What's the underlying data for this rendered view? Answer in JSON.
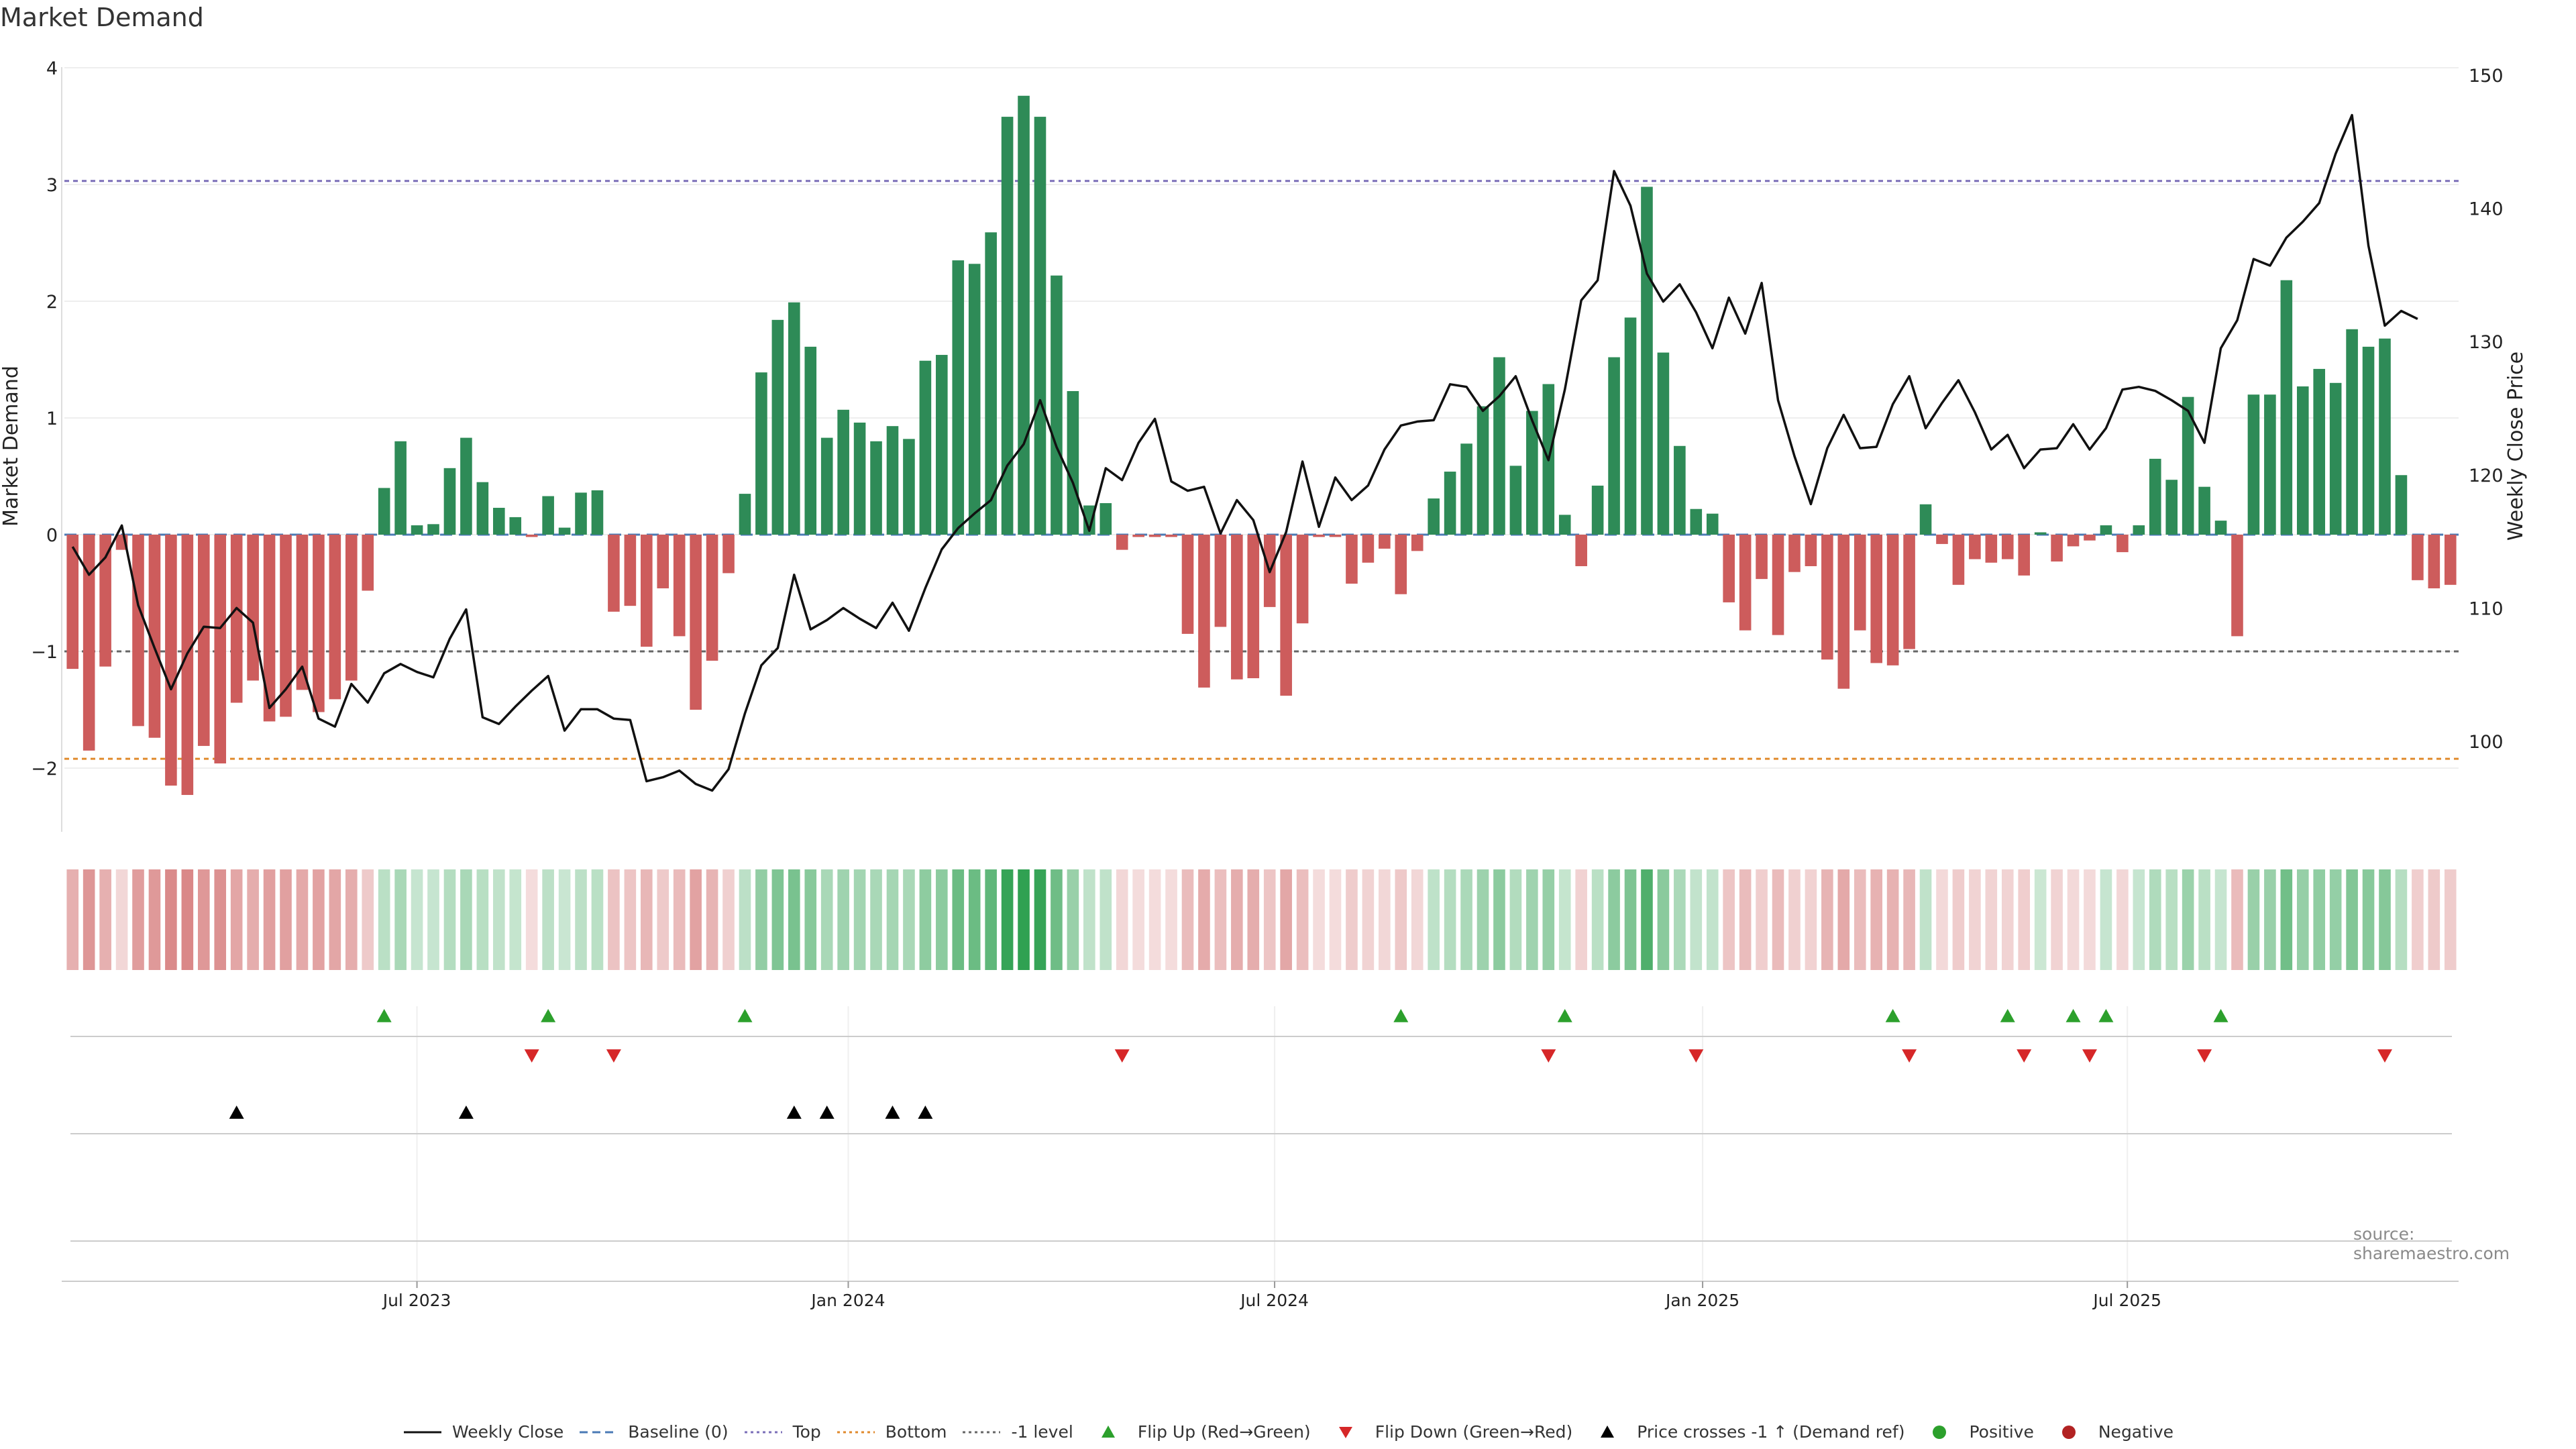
{
  "chart_data": {
    "type": "bar",
    "title": "Market Demand",
    "ylabel_left": "Market Demand",
    "ylabel_right": "Weekly Close Price",
    "source": "source: sharemaestro.com",
    "left_axis": {
      "ticks": [
        "4",
        "3",
        "2",
        "1",
        "0",
        "−1",
        "−2"
      ],
      "ylim": [
        -2.55,
        4.0
      ]
    },
    "right_axis": {
      "ticks": [
        "150",
        "140",
        "130",
        "120",
        "110",
        "100"
      ],
      "ylim": [
        94,
        151
      ]
    },
    "x_axis": {
      "labels": [
        "Jul 2023",
        "Jan 2024",
        "Jul 2024",
        "Jan 2025",
        "Jul 2025"
      ],
      "label_week_index": [
        21.5,
        47.8,
        73.8,
        99.9,
        125.8
      ]
    },
    "reference_lines": [
      {
        "name": "Top",
        "value": 3.03,
        "color": "#7b6fb8"
      },
      {
        "name": "-1 level",
        "value": -1.0,
        "color": "#666666"
      },
      {
        "name": "Bottom",
        "value": -1.92,
        "color": "#e08a2c"
      }
    ],
    "colors": {
      "positive": "#2e8b57",
      "negative": "#cd5c5c",
      "price": "#111111",
      "flip_up": "#2ca02c",
      "flip_down": "#d62728",
      "cross": "#000000"
    },
    "demand": [
      -1.15,
      -1.85,
      -1.13,
      -0.13,
      -1.64,
      -1.74,
      -2.15,
      -2.23,
      -1.81,
      -1.96,
      -1.44,
      -1.25,
      -1.6,
      -1.56,
      -1.33,
      -1.52,
      -1.41,
      -1.25,
      -0.48,
      0.4,
      0.8,
      0.08,
      0.09,
      0.57,
      0.83,
      0.45,
      0.23,
      0.15,
      -0.02,
      0.33,
      0.06,
      0.36,
      0.38,
      -0.66,
      -0.61,
      -0.96,
      -0.46,
      -0.87,
      -1.5,
      -1.08,
      -0.33,
      0.35,
      1.39,
      1.84,
      1.99,
      1.61,
      0.83,
      1.07,
      0.96,
      0.8,
      0.93,
      0.82,
      1.49,
      1.54,
      2.35,
      2.32,
      2.59,
      3.58,
      3.76,
      3.58,
      2.22,
      1.23,
      0.25,
      0.27,
      -0.13,
      -0.02,
      -0.02,
      -0.02,
      -0.85,
      -1.31,
      -0.79,
      -1.24,
      -1.23,
      -0.62,
      -1.38,
      -0.76,
      -0.02,
      -0.02,
      -0.42,
      -0.24,
      -0.12,
      -0.51,
      -0.14,
      0.31,
      0.54,
      0.78,
      1.1,
      1.52,
      0.59,
      1.06,
      1.29,
      0.17,
      -0.27,
      0.42,
      1.52,
      1.86,
      2.98,
      1.56,
      0.76,
      0.22,
      0.18,
      -0.58,
      -0.82,
      -0.38,
      -0.86,
      -0.32,
      -0.27,
      -1.07,
      -1.32,
      -0.82,
      -1.1,
      -1.12,
      -0.98,
      0.26,
      -0.08,
      -0.43,
      -0.21,
      -0.24,
      -0.21,
      -0.35,
      0.02,
      -0.23,
      -0.1,
      -0.05,
      0.08,
      -0.15,
      0.08,
      0.65,
      0.47,
      1.18,
      0.41,
      0.12,
      -0.87,
      1.2,
      1.2,
      2.18,
      1.27,
      1.42,
      1.3,
      1.76,
      1.61,
      1.68,
      0.51,
      -0.39,
      -0.46,
      -0.43
    ],
    "weekly_close": [
      114.6,
      112.5,
      113.8,
      116.2,
      110.2,
      107.0,
      103.9,
      106.6,
      108.6,
      108.5,
      110.0,
      108.9,
      102.5,
      103.9,
      105.6,
      101.7,
      101.1,
      104.3,
      102.9,
      105.1,
      105.8,
      105.2,
      104.8,
      107.7,
      109.9,
      101.8,
      101.3,
      102.6,
      103.8,
      104.9,
      100.8,
      102.4,
      102.4,
      101.7,
      101.6,
      97.0,
      97.3,
      97.8,
      96.8,
      96.3,
      97.9,
      102.1,
      105.7,
      107.0,
      112.5,
      108.4,
      109.1,
      110.0,
      109.2,
      108.5,
      110.4,
      108.3,
      111.5,
      114.4,
      116.0,
      117.1,
      118.1,
      120.7,
      122.3,
      125.6,
      122.1,
      119.4,
      115.8,
      120.5,
      119.6,
      122.4,
      124.2,
      119.5,
      118.8,
      119.1,
      115.6,
      118.1,
      116.6,
      112.7,
      115.7,
      121.0,
      116.1,
      119.8,
      118.1,
      119.2,
      121.9,
      123.7,
      124.0,
      124.1,
      126.8,
      126.6,
      124.8,
      125.9,
      127.4,
      124.1,
      121.1,
      126.4,
      133.1,
      134.6,
      142.8,
      140.2,
      135.1,
      133.0,
      134.3,
      132.2,
      129.5,
      133.3,
      130.6,
      134.4,
      125.6,
      121.4,
      117.8,
      122.0,
      124.5,
      122.0,
      122.1,
      125.3,
      127.4,
      123.5,
      125.4,
      127.1,
      124.7,
      121.9,
      123.0,
      120.5,
      121.9,
      122.0,
      123.8,
      121.9,
      123.5,
      126.4,
      126.6,
      126.3,
      125.6,
      124.8,
      122.4,
      129.5,
      131.6,
      136.2,
      135.7,
      137.8,
      139.0,
      140.4,
      144.1,
      147.0,
      137.2,
      131.2,
      132.3,
      131.7
    ],
    "flip_up_index": [
      19,
      29,
      41,
      81,
      91,
      111,
      118,
      122,
      124,
      131
    ],
    "flip_down_index": [
      28,
      33,
      64,
      90,
      99,
      112,
      119,
      123,
      130,
      141
    ],
    "cross_up_index": [
      10,
      24,
      44,
      46,
      50,
      52
    ],
    "legend": [
      {
        "label": "Weekly Close",
        "marker": "line-solid",
        "color": "#111111"
      },
      {
        "label": "Baseline (0)",
        "marker": "line-dashed",
        "color": "#4a7ab5"
      },
      {
        "label": "Top",
        "marker": "line-dotted",
        "color": "#7b6fb8"
      },
      {
        "label": "Bottom",
        "marker": "line-dotted",
        "color": "#e08a2c"
      },
      {
        "label": "-1 level",
        "marker": "line-dotted",
        "color": "#666666"
      },
      {
        "label": "Flip Up (Red→Green)",
        "marker": "triangle-up",
        "color": "#2ca02c"
      },
      {
        "label": "Flip Down (Green→Red)",
        "marker": "triangle-down",
        "color": "#d62728"
      },
      {
        "label": "Price crosses -1 ↑ (Demand ref)",
        "marker": "triangle-up",
        "color": "#000000"
      },
      {
        "label": "Positive",
        "marker": "dot",
        "color": "#2ca02c"
      },
      {
        "label": "Negative",
        "marker": "dot",
        "color": "#b22222"
      }
    ]
  }
}
